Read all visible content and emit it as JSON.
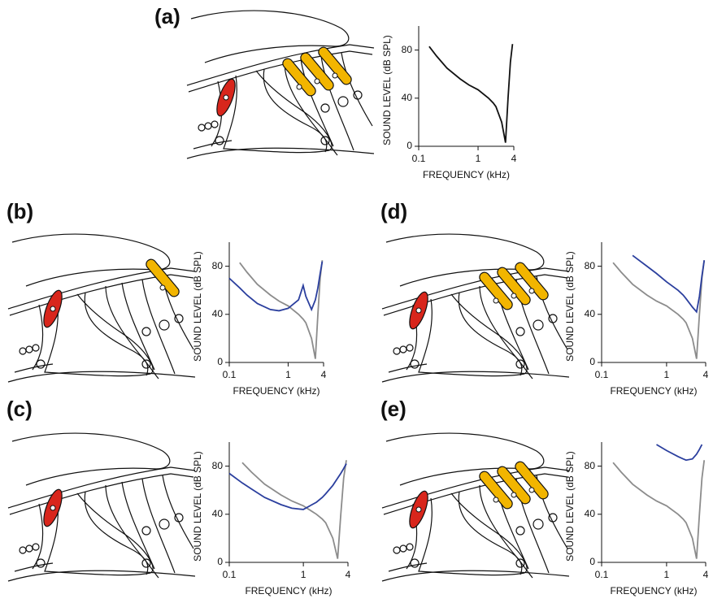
{
  "chart_data": [
    {
      "type": "line",
      "panel": "(a)",
      "ylabel": "SOUND LEVEL (dB SPL)",
      "xlabel": "FREQUENCY (kHz)",
      "log_x": true,
      "x": [
        0.1,
        0.15,
        0.2,
        0.3,
        0.5,
        0.7,
        1,
        1.5,
        1.8,
        2,
        2.5,
        2.9,
        3.2,
        3.5,
        3.8
      ],
      "series": [
        {
          "color": "#111111",
          "values": [
            null,
            83,
            75,
            65,
            56,
            51,
            47,
            40,
            36,
            33,
            20,
            3,
            40,
            70,
            85
          ]
        }
      ],
      "xlim": [
        0.1,
        4
      ],
      "ylim": [
        0,
        100
      ],
      "xticks": [
        0.1,
        1,
        4
      ],
      "yticks": [
        0,
        40,
        80
      ]
    },
    {
      "type": "line",
      "panel": "(b)",
      "ylabel": "SOUND LEVEL (dB SPL)",
      "xlabel": "FREQUENCY (kHz)",
      "log_x": true,
      "x": [
        0.1,
        0.15,
        0.2,
        0.3,
        0.5,
        0.7,
        1,
        1.5,
        1.8,
        2,
        2.5,
        2.9,
        3.2,
        3.5,
        3.8
      ],
      "series": [
        {
          "color": "#8c8c8c",
          "values": [
            null,
            83,
            75,
            65,
            56,
            51,
            47,
            40,
            36,
            33,
            20,
            3,
            40,
            70,
            85
          ]
        },
        {
          "color": "#2b3f9e",
          "values": [
            70,
            62,
            56,
            49,
            44,
            43,
            45,
            52,
            64,
            55,
            44,
            52,
            62,
            74,
            84
          ]
        }
      ],
      "xlim": [
        0.1,
        4
      ],
      "ylim": [
        0,
        100
      ],
      "xticks": [
        0.1,
        1,
        4
      ],
      "yticks": [
        0,
        40,
        80
      ]
    },
    {
      "type": "line",
      "panel": "(c)",
      "ylabel": "SOUND LEVEL (dB SPL)",
      "xlabel": "FREQUENCY (kHz)",
      "log_x": true,
      "x": [
        0.1,
        0.15,
        0.2,
        0.3,
        0.5,
        0.7,
        1,
        1.5,
        1.8,
        2,
        2.5,
        2.9,
        3.2,
        3.5,
        3.8
      ],
      "series": [
        {
          "color": "#8c8c8c",
          "values": [
            null,
            83,
            75,
            65,
            56,
            51,
            47,
            40,
            36,
            33,
            20,
            3,
            40,
            70,
            85
          ]
        },
        {
          "color": "#2b3f9e",
          "values": [
            74,
            66,
            61,
            54,
            48,
            45,
            44,
            50,
            54,
            57,
            64,
            70,
            74,
            78,
            82
          ]
        }
      ],
      "xlim": [
        0.1,
        4
      ],
      "ylim": [
        0,
        100
      ],
      "xticks": [
        0.1,
        1,
        4
      ],
      "yticks": [
        0,
        40,
        80
      ]
    },
    {
      "type": "line",
      "panel": "(d)",
      "ylabel": "SOUND LEVEL (dB SPL)",
      "xlabel": "FREQUENCY (kHz)",
      "log_x": true,
      "x": [
        0.1,
        0.15,
        0.2,
        0.3,
        0.5,
        0.7,
        1,
        1.5,
        1.8,
        2,
        2.5,
        2.9,
        3.2,
        3.5,
        3.8
      ],
      "series": [
        {
          "color": "#8c8c8c",
          "values": [
            null,
            83,
            75,
            65,
            56,
            51,
            47,
            40,
            36,
            33,
            20,
            3,
            40,
            70,
            85
          ]
        },
        {
          "color": "#2b3f9e",
          "values": [
            null,
            null,
            null,
            89,
            80,
            74,
            67,
            60,
            56,
            53,
            46,
            42,
            55,
            72,
            85
          ]
        }
      ],
      "xlim": [
        0.1,
        4
      ],
      "ylim": [
        0,
        100
      ],
      "xticks": [
        0.1,
        1,
        4
      ],
      "yticks": [
        0,
        40,
        80
      ]
    },
    {
      "type": "line",
      "panel": "(e)",
      "ylabel": "SOUND LEVEL (dB SPL)",
      "xlabel": "FREQUENCY (kHz)",
      "log_x": true,
      "x": [
        0.1,
        0.15,
        0.2,
        0.3,
        0.5,
        0.7,
        1,
        1.5,
        1.8,
        2,
        2.5,
        2.9,
        3.2,
        3.5,
        3.8
      ],
      "series": [
        {
          "color": "#8c8c8c",
          "values": [
            null,
            83,
            75,
            65,
            56,
            51,
            47,
            40,
            36,
            33,
            20,
            3,
            40,
            70,
            85
          ]
        },
        {
          "color": "#2b3f9e",
          "values": [
            null,
            null,
            null,
            null,
            null,
            98,
            93,
            88,
            86,
            85,
            86,
            90,
            94,
            98,
            null
          ]
        }
      ],
      "xlim": [
        0.1,
        4
      ],
      "ylim": [
        0,
        100
      ],
      "xticks": [
        0.1,
        1,
        4
      ],
      "yticks": [
        0,
        40,
        80
      ]
    }
  ]
}
